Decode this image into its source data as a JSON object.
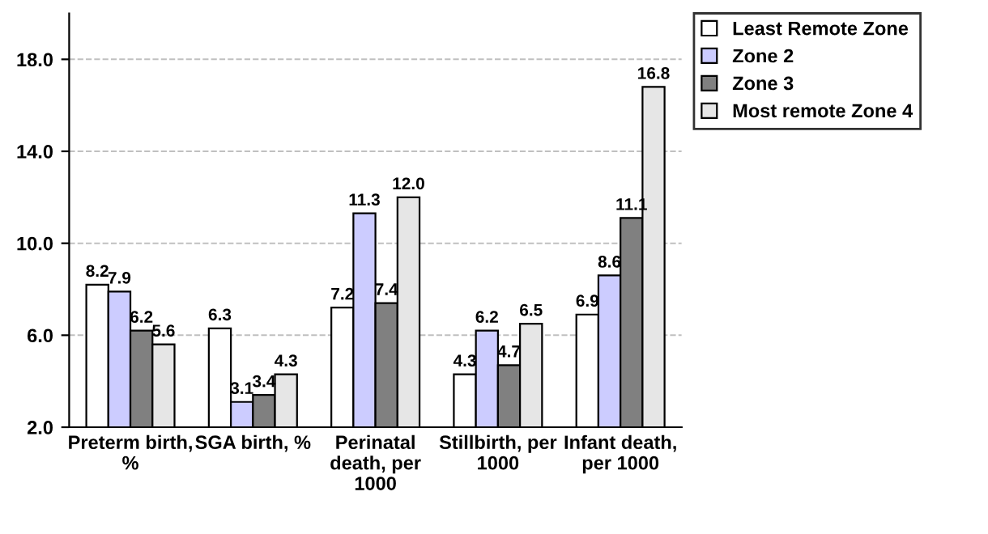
{
  "chart_data": {
    "type": "bar",
    "categories": [
      "Preterm birth,\n%",
      "SGA birth, %",
      "Perinatal\ndeath, per\n1000",
      "Stillbirth, per\n1000",
      "Infant death,\nper 1000"
    ],
    "series": [
      {
        "name": "Least Remote Zone",
        "color": "#ffffff",
        "values": [
          8.2,
          6.3,
          7.2,
          4.3,
          6.9
        ],
        "value_labels": [
          "8.2",
          "6.3",
          "7.2",
          "4.3",
          "6.9"
        ]
      },
      {
        "name": "Zone 2",
        "color": "#ccccff",
        "values": [
          7.9,
          3.1,
          11.3,
          6.2,
          8.6
        ],
        "value_labels": [
          "7.9",
          "3.1",
          "11.3",
          "6.2",
          "8.6"
        ]
      },
      {
        "name": "Zone 3",
        "color": "#808080",
        "values": [
          6.2,
          3.4,
          7.4,
          4.7,
          11.1
        ],
        "value_labels": [
          "6.2",
          "3.4",
          "7.4",
          "4.7",
          "11.1"
        ]
      },
      {
        "name": "Most remote Zone 4",
        "color": "#e6e6e6",
        "values": [
          5.6,
          4.3,
          12.0,
          6.5,
          16.8
        ],
        "value_labels": [
          "5.6",
          "4.3",
          "12.0",
          "6.5",
          "16.8"
        ]
      }
    ],
    "ylim": [
      2,
      20
    ],
    "yticks": [
      {
        "value": 2,
        "label": "2.0"
      },
      {
        "value": 6,
        "label": "6.0"
      },
      {
        "value": 10,
        "label": "10.0"
      },
      {
        "value": 14,
        "label": "14.0"
      },
      {
        "value": 18,
        "label": "18.0"
      }
    ],
    "grid": "y",
    "legend": "right"
  }
}
